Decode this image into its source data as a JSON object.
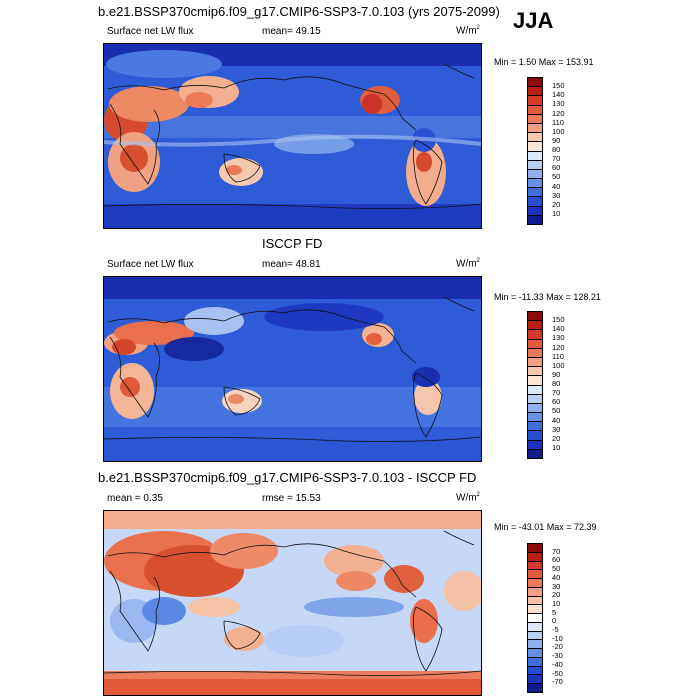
{
  "season": "JJA",
  "panels": [
    {
      "title": "b.e21.BSSP370cmip6.f09_g17.CMIP6-SSP3-7.0.103 (yrs 2075-2099)",
      "variable": "Surface net LW flux",
      "stat_label": "mean=",
      "stat_value": "49.15",
      "units": "W/m",
      "units_exp": "2",
      "minmax": "Min =   1.50 Max = 153.91",
      "colorbar_labels": [
        "150",
        "140",
        "130",
        "120",
        "110",
        "100",
        "90",
        "80",
        "70",
        "60",
        "50",
        "40",
        "30",
        "20",
        "10"
      ],
      "colorbar_colors": [
        "#8c0a0a",
        "#b81f14",
        "#d63a24",
        "#e45a3a",
        "#ee7a55",
        "#f4a07e",
        "#f8c7ac",
        "#fbe6d6",
        "#dce9f8",
        "#b8d0f4",
        "#8fb0ee",
        "#6690e6",
        "#3f6fdc",
        "#2450d0",
        "#1a34bb",
        "#0e1c8e"
      ]
    },
    {
      "title": "ISCCP FD",
      "variable": "Surface net LW flux",
      "stat_label": "mean=",
      "stat_value": "48.81",
      "units": "W/m",
      "units_exp": "2",
      "minmax": "Min = -11.33 Max = 128.21",
      "colorbar_labels": [
        "150",
        "140",
        "130",
        "120",
        "110",
        "100",
        "90",
        "80",
        "70",
        "60",
        "50",
        "40",
        "30",
        "20",
        "10"
      ],
      "colorbar_colors": [
        "#8c0a0a",
        "#b81f14",
        "#d63a24",
        "#e45a3a",
        "#ee7a55",
        "#f4a07e",
        "#f8c7ac",
        "#fbe6d6",
        "#dce9f8",
        "#b8d0f4",
        "#8fb0ee",
        "#6690e6",
        "#3f6fdc",
        "#2450d0",
        "#1a34bb",
        "#0e1c8e"
      ]
    },
    {
      "title": "b.e21.BSSP370cmip6.f09_g17.CMIP6-SSP3-7.0.103 - ISCCP FD",
      "variable": "mean =   0.35",
      "stat_label": "rmse =",
      "stat_value": "15.53",
      "units": "W/m",
      "units_exp": "2",
      "minmax": "Min = -43.01 Max =  72.39",
      "colorbar_labels": [
        "70",
        "60",
        "50",
        "40",
        "30",
        "20",
        "10",
        "5",
        "0",
        "-5",
        "-10",
        "-20",
        "-30",
        "-40",
        "-50",
        "-70"
      ],
      "colorbar_colors": [
        "#8c0a0a",
        "#b81f14",
        "#d63a24",
        "#e45a3a",
        "#ee7a55",
        "#f4a07e",
        "#f8c0a4",
        "#fbe3d4",
        "#ffffff",
        "#dce9f8",
        "#b8d0f4",
        "#8fb0ee",
        "#6690e6",
        "#3f6fdc",
        "#2450d0",
        "#1a34bb",
        "#0e1c8e"
      ]
    }
  ]
}
